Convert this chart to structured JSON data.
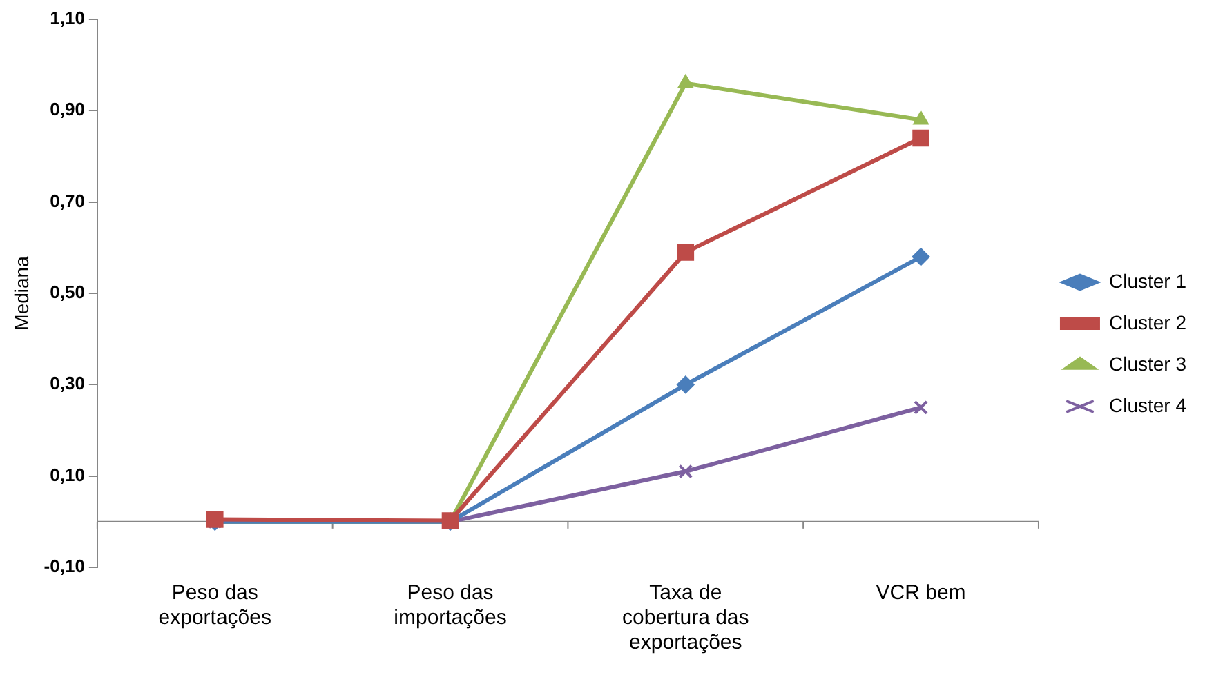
{
  "chart_data": {
    "type": "line",
    "ylabel": "Mediana",
    "categories": [
      "Peso das exportações",
      "Peso das importações",
      "Taxa de cobertura das exportações",
      "VCR bem"
    ],
    "series": [
      {
        "name": "Cluster 1",
        "color": "#4a7ebb",
        "marker": "diamond",
        "values": [
          0,
          0,
          0.3,
          0.58
        ]
      },
      {
        "name": "Cluster 2",
        "color": "#be4b48",
        "marker": "square",
        "values": [
          0.005,
          0.002,
          0.59,
          0.84
        ]
      },
      {
        "name": "Cluster 3",
        "color": "#98b954",
        "marker": "triangle",
        "values": [
          0,
          0,
          0.96,
          0.88
        ]
      },
      {
        "name": "Cluster 4",
        "color": "#7d60a0",
        "marker": "cross",
        "values": [
          0,
          0,
          0.11,
          0.25
        ]
      }
    ],
    "ylim": [
      -0.1,
      1.1
    ],
    "yticks": [
      {
        "value": -0.1,
        "label": "-0,10"
      },
      {
        "value": 0.1,
        "label": "0,10"
      },
      {
        "value": 0.3,
        "label": "0,30"
      },
      {
        "value": 0.5,
        "label": "0,50"
      },
      {
        "value": 0.7,
        "label": "0,70"
      },
      {
        "value": 0.9,
        "label": "0,90"
      },
      {
        "value": 1.1,
        "label": "1,10"
      }
    ],
    "grid": false,
    "legend": "right"
  }
}
